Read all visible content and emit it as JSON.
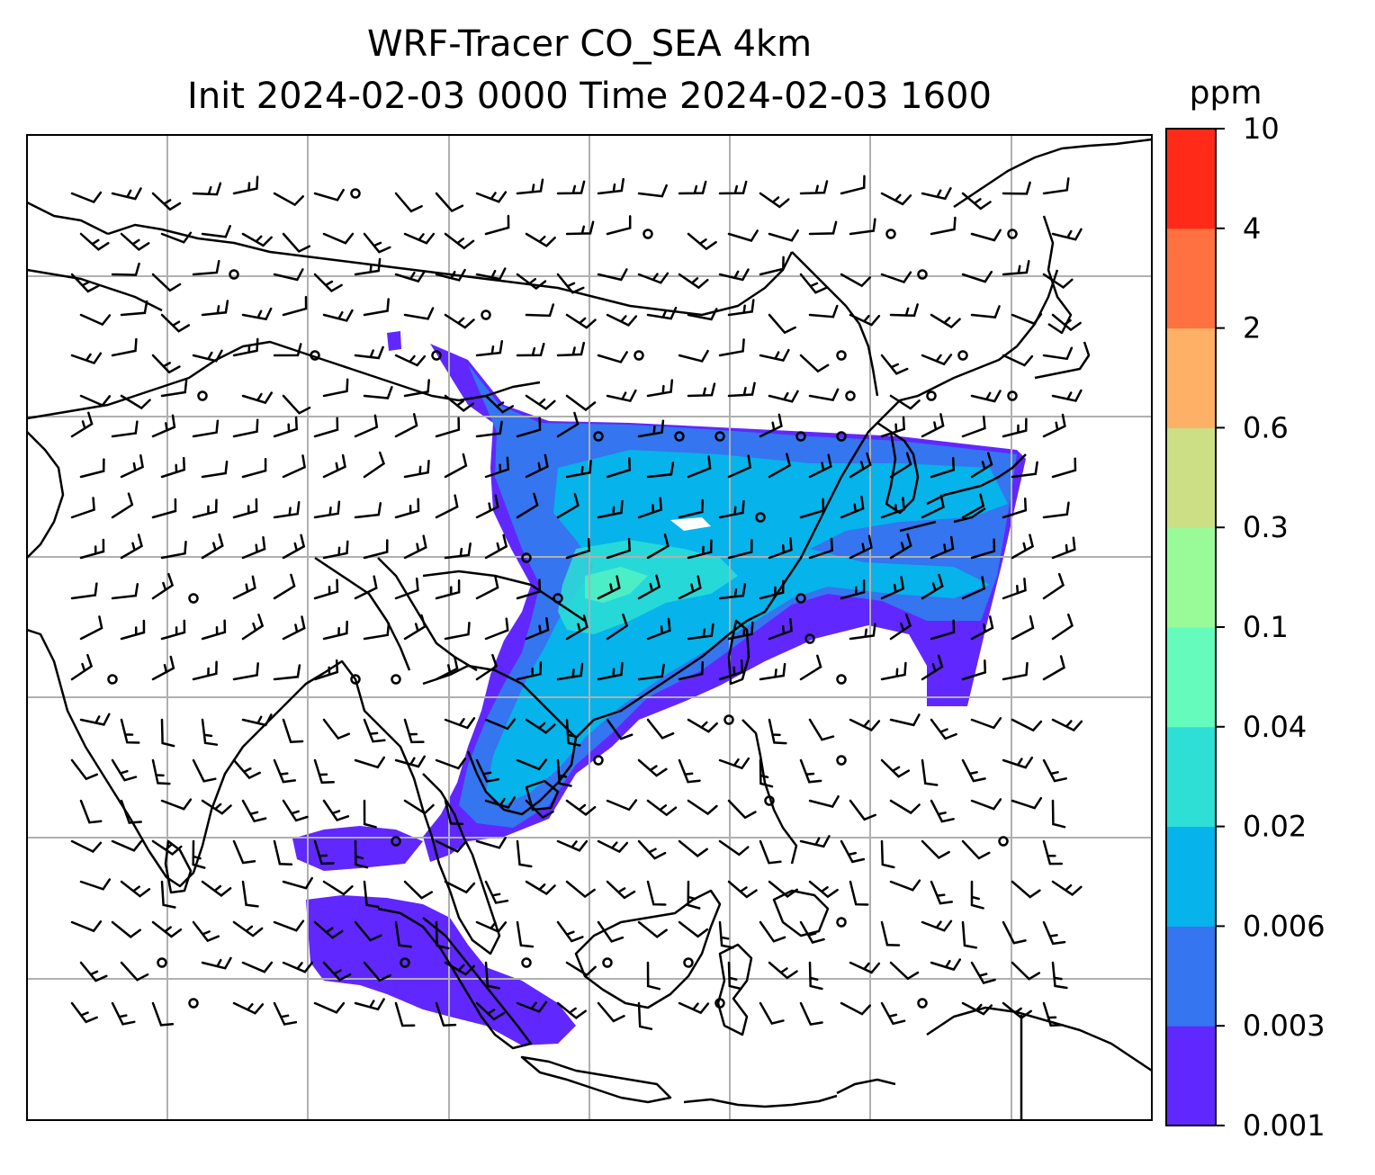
{
  "title": {
    "line1": "WRF-Tracer CO_SEA 4km",
    "line2": "Init 2024-02-03 0000 Time 2024-02-03 1600"
  },
  "colorbar": {
    "unit": "ppm",
    "levels": [
      "0.001",
      "0.003",
      "0.006",
      "0.02",
      "0.04",
      "0.1",
      "0.3",
      "0.6",
      "2",
      "4",
      "10"
    ],
    "colors": [
      "#6028ff",
      "#3575ef",
      "#06b3ea",
      "#2ddfd5",
      "#64fbbd",
      "#98fb98",
      "#ccdf85",
      "#fdb066",
      "#ff7140",
      "#ff2a18"
    ]
  },
  "map": {
    "graticule": "on",
    "coastlines": "on",
    "wind_barbs": "on",
    "tracer_field": "CO_SEA"
  }
}
